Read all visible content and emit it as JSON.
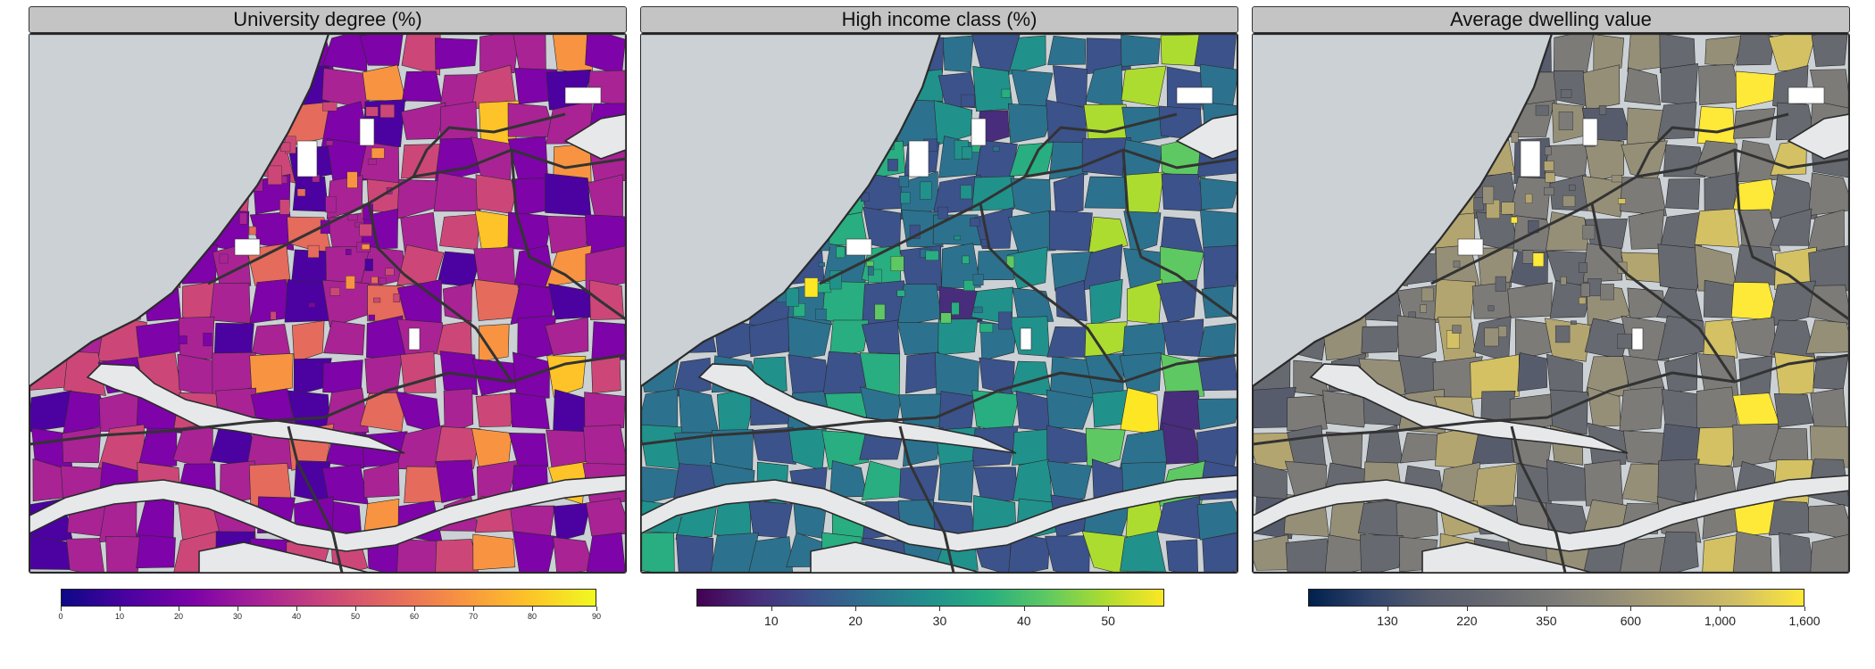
{
  "panels": [
    {
      "title": "University degree (%)",
      "palette": [
        "#0d0887",
        "#4c02a1",
        "#7e03a8",
        "#a92395",
        "#cc4778",
        "#e56b5d",
        "#f89441",
        "#fdc328",
        "#f0f921"
      ],
      "legend": {
        "ticks": [
          "0",
          "10",
          "20",
          "30",
          "40",
          "50",
          "60",
          "70",
          "80",
          "90"
        ]
      },
      "map": {
        "palette_indices": [
          3,
          3,
          2,
          4,
          2,
          3,
          5,
          1,
          2,
          3,
          4,
          2,
          3,
          2,
          6,
          3,
          1,
          2,
          3,
          2,
          4,
          3,
          2,
          1,
          3,
          5,
          2,
          3,
          4,
          2,
          1,
          3,
          2,
          3,
          4,
          2,
          3,
          1,
          2,
          5,
          3,
          2,
          3,
          4,
          6,
          2,
          3,
          2
        ]
      }
    },
    {
      "title": "High income class (%)",
      "palette": [
        "#440154",
        "#472d7b",
        "#3b528b",
        "#2c728e",
        "#21918c",
        "#28ae80",
        "#5ec962",
        "#addc30",
        "#fde725"
      ],
      "legend": {
        "ticks": [
          "10",
          "20",
          "30",
          "40",
          "50"
        ]
      },
      "map": {
        "palette_indices": [
          3,
          2,
          3,
          4,
          2,
          3,
          5,
          2,
          3,
          2,
          4,
          3,
          2,
          3,
          6,
          2,
          3,
          3,
          4,
          2,
          3,
          5,
          2,
          3,
          2,
          4,
          3,
          2,
          3,
          7,
          2,
          3,
          4,
          2,
          3,
          2,
          3,
          5,
          2,
          3,
          4,
          2,
          3,
          2,
          6,
          3,
          2,
          3
        ]
      }
    },
    {
      "title": "Average dwelling value",
      "palette": [
        "#00204d",
        "#31446b",
        "#575c6d",
        "#666970",
        "#7c7b78",
        "#958f78",
        "#b3a570",
        "#d3c164",
        "#fee838"
      ],
      "legend": {
        "ticks": [
          "130",
          "220",
          "350",
          "600",
          "1,000",
          "1,600"
        ]
      },
      "map": {
        "palette_indices": [
          3,
          4,
          3,
          5,
          3,
          4,
          6,
          2,
          3,
          4,
          5,
          3,
          4,
          3,
          7,
          3,
          2,
          4,
          5,
          3,
          4,
          6,
          3,
          4,
          3,
          5,
          4,
          3,
          4,
          8,
          3,
          4,
          5,
          3,
          4,
          3,
          4,
          6,
          3,
          4,
          5,
          3,
          4,
          3,
          7,
          4,
          3,
          4
        ]
      }
    }
  ]
}
